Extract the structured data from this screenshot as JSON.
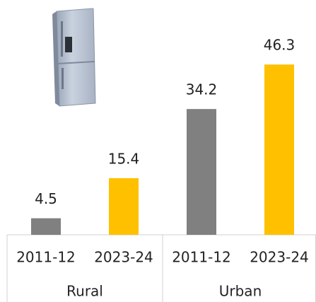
{
  "chart_data": {
    "type": "bar",
    "categories": [
      "Rural",
      "Urban"
    ],
    "series": [
      {
        "name": "2011-12",
        "color": "#808080",
        "values": [
          4.5,
          34.2
        ]
      },
      {
        "name": "2023-24",
        "color": "#ffc000",
        "values": [
          15.4,
          46.3
        ]
      }
    ]
  }
}
